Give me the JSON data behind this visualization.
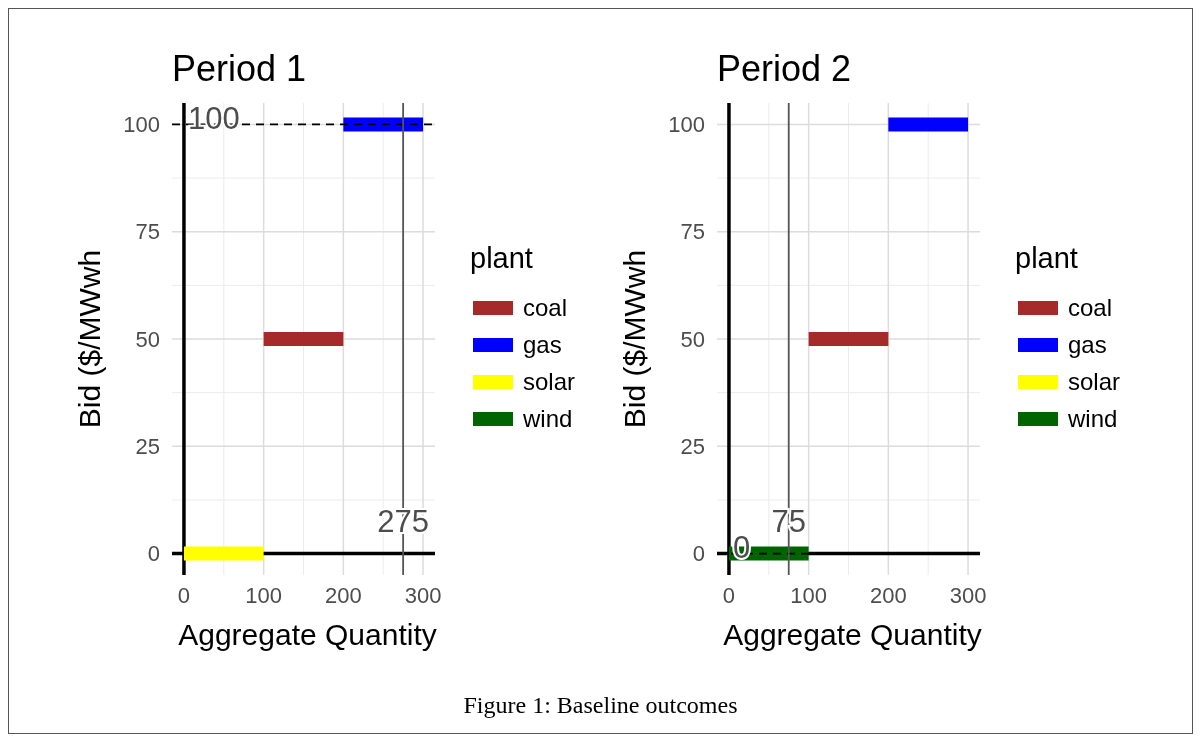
{
  "chart_data": [
    {
      "type": "line",
      "title": "Period 1",
      "xlabel": "Aggregate Quantity",
      "ylabel": "Bid ($/MWwh",
      "legend_title": "plant",
      "legend": "right",
      "grid": true,
      "xlim": [
        -15,
        315
      ],
      "ylim": [
        -5,
        105
      ],
      "xticks": [
        0,
        100,
        200,
        300
      ],
      "yticks": [
        0,
        25,
        50,
        75,
        100
      ],
      "series": [
        {
          "name": "coal",
          "color": "#a52a2a",
          "x": [
            100,
            200
          ],
          "values": [
            50,
            50
          ]
        },
        {
          "name": "gas",
          "color": "#0000ff",
          "x": [
            200,
            300
          ],
          "values": [
            100,
            100
          ]
        },
        {
          "name": "solar",
          "color": "#ffff00",
          "x": [
            0,
            100
          ],
          "values": [
            0,
            0
          ]
        },
        {
          "name": "wind",
          "color": "#006400"
        }
      ],
      "ref_lines": [
        {
          "axis": "y",
          "value": 100,
          "label": "100",
          "line_style": "dashed",
          "color": "#000000"
        },
        {
          "axis": "x",
          "value": 275,
          "label": "275",
          "line_style": "solid",
          "color": "#555555"
        }
      ],
      "annotations": [
        "Figure 1: Baseline outcomes"
      ]
    },
    {
      "type": "line",
      "title": "Period 2",
      "xlabel": "Aggregate Quantity",
      "ylabel": "Bid ($/MWwh",
      "legend_title": "plant",
      "legend": "right",
      "grid": true,
      "xlim": [
        -15,
        315
      ],
      "ylim": [
        -5,
        105
      ],
      "xticks": [
        0,
        100,
        200,
        300
      ],
      "yticks": [
        0,
        25,
        50,
        75,
        100
      ],
      "series": [
        {
          "name": "coal",
          "color": "#a52a2a",
          "x": [
            100,
            200
          ],
          "values": [
            50,
            50
          ]
        },
        {
          "name": "gas",
          "color": "#0000ff",
          "x": [
            200,
            300
          ],
          "values": [
            100,
            100
          ]
        },
        {
          "name": "solar",
          "color": "#ffff00"
        },
        {
          "name": "wind",
          "color": "#006400",
          "x": [
            0,
            100
          ],
          "values": [
            0,
            0
          ]
        }
      ],
      "ref_lines": [
        {
          "axis": "y",
          "value": 0,
          "label": "0",
          "line_style": "dashed",
          "color": "#000000"
        },
        {
          "axis": "x",
          "value": 75,
          "label": "75",
          "line_style": "solid",
          "color": "#555555"
        }
      ]
    }
  ]
}
